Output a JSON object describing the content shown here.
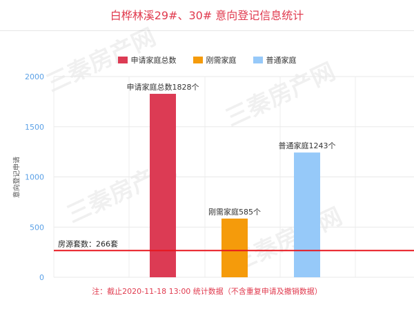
{
  "title": "白桦林溪29#、30# 意向登记信息统计",
  "footnote": "注：截止2020-11-18 13:00 统计数据（不含重复申请及撤销数据）",
  "watermark": "三秦房产网",
  "chart_data": {
    "type": "bar",
    "title": "白桦林溪29#、30# 意向登记信息统计",
    "ylabel": "意向登记申请",
    "ylim": [
      0,
      2000
    ],
    "yticks": [
      0,
      500,
      1000,
      1500,
      2000
    ],
    "grid": true,
    "legend_position": "top-center",
    "series": [
      {
        "name": "申请家庭总数",
        "value": 1828,
        "color": "#dc3b54",
        "label": "申请家庭总数1828个"
      },
      {
        "name": "刚需家庭",
        "value": 585,
        "color": "#f59b0b",
        "label": "刚需家庭585个"
      },
      {
        "name": "普通家庭",
        "value": 1243,
        "color": "#96c9f9",
        "label": "普通家庭1243个"
      }
    ],
    "reference_line": {
      "value": 266,
      "label": "房源套数：266套",
      "color": "#e8161e"
    }
  }
}
